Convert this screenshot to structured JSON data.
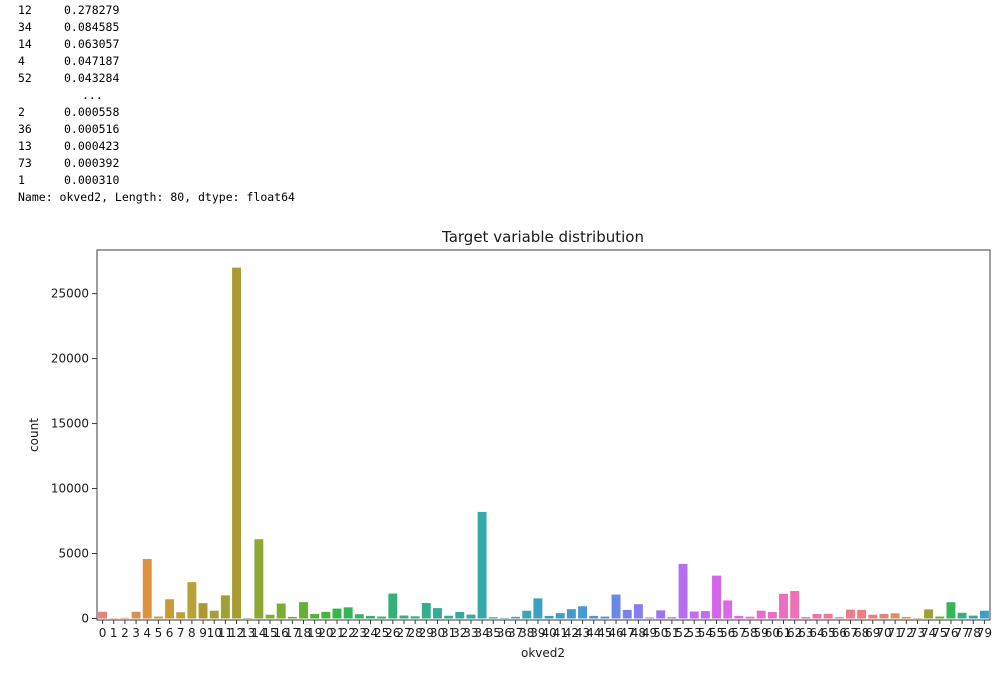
{
  "console": {
    "rows": [
      {
        "index": "12",
        "value": "0.278279"
      },
      {
        "index": "34",
        "value": "0.084585"
      },
      {
        "index": "14",
        "value": "0.063057"
      },
      {
        "index": "4",
        "value": "0.047187"
      },
      {
        "index": "52",
        "value": "0.043284"
      },
      {
        "index": "",
        "value": "..."
      },
      {
        "index": "2",
        "value": "0.000558"
      },
      {
        "index": "36",
        "value": "0.000516"
      },
      {
        "index": "13",
        "value": "0.000423"
      },
      {
        "index": "73",
        "value": "0.000392"
      },
      {
        "index": "1",
        "value": "0.000310"
      }
    ],
    "footer": "Name: okved2, Length: 80, dtype: float64"
  },
  "chart_data": {
    "type": "bar",
    "title": "Target variable distribution",
    "xlabel": "okved2",
    "ylabel": "count",
    "ylim": [
      0,
      28000
    ],
    "yticks": [
      0,
      5000,
      10000,
      15000,
      20000,
      25000
    ],
    "grid": false,
    "categories": [
      "0",
      "1",
      "2",
      "3",
      "4",
      "5",
      "6",
      "7",
      "8",
      "9",
      "10",
      "11",
      "12",
      "13",
      "14",
      "15",
      "16",
      "17",
      "18",
      "19",
      "20",
      "21",
      "22",
      "23",
      "24",
      "25",
      "26",
      "27",
      "28",
      "29",
      "30",
      "31",
      "32",
      "33",
      "34",
      "35",
      "36",
      "37",
      "38",
      "39",
      "40",
      "41",
      "42",
      "43",
      "44",
      "45",
      "46",
      "47",
      "48",
      "49",
      "50",
      "51",
      "52",
      "53",
      "54",
      "55",
      "56",
      "57",
      "58",
      "59",
      "60",
      "61",
      "62",
      "63",
      "64",
      "65",
      "66",
      "67",
      "68",
      "69",
      "70",
      "71",
      "72",
      "73",
      "74",
      "75",
      "76",
      "77",
      "78",
      "79"
    ],
    "values": [
      520,
      30,
      54,
      520,
      4580,
      150,
      1480,
      480,
      2800,
      1180,
      600,
      1780,
      27000,
      41,
      6100,
      290,
      1150,
      120,
      1260,
      350,
      510,
      760,
      860,
      330,
      200,
      150,
      1920,
      230,
      170,
      1190,
      800,
      210,
      500,
      300,
      8200,
      100,
      50,
      130,
      600,
      1550,
      200,
      410,
      720,
      940,
      200,
      150,
      1840,
      660,
      1100,
      80,
      630,
      100,
      4200,
      540,
      570,
      3300,
      1390,
      200,
      140,
      600,
      500,
      1900,
      2120,
      110,
      350,
      360,
      100,
      680,
      660,
      290,
      350,
      400,
      120,
      38,
      700,
      150,
      1250,
      440,
      220,
      600
    ],
    "colors": [
      "#e1857d",
      "#e18871",
      "#e08b62",
      "#df8e51",
      "#dd923d",
      "#d19837",
      "#c79c37",
      "#bea037",
      "#b6a236",
      "#ae9836",
      "#a79e36",
      "#a1a036",
      "#a99b33",
      "#98a533",
      "#8fa733",
      "#86aa33",
      "#7cad33",
      "#72ad33",
      "#66b033",
      "#57b233",
      "#46b33c",
      "#3ab54a",
      "#36b458",
      "#35b364",
      "#35b26c",
      "#35b174",
      "#35b07b",
      "#35af82",
      "#35ae88",
      "#35ad8e",
      "#35ac94",
      "#35ab99",
      "#36aa9f",
      "#36a9a4",
      "#36a8a9",
      "#37a7ae",
      "#38a6b2",
      "#39a5b7",
      "#3aa3bc",
      "#3ba1c1",
      "#3d9fc6",
      "#409dcb",
      "#449ad0",
      "#4a97d5",
      "#5293db",
      "#5d8ee1",
      "#6a89e6",
      "#7883ea",
      "#877dee",
      "#957af0",
      "#a074f1",
      "#ab6ff1",
      "#b66ef1",
      "#c06bf0",
      "#ca69ee",
      "#d466eb",
      "#db68e5",
      "#e06bde",
      "#e36cd7",
      "#e76cd0",
      "#e96cc9",
      "#eb6ec1",
      "#ed70b8",
      "#ee72b0",
      "#ef74a7",
      "#f0769e",
      "#f07894",
      "#f07a8b",
      "#f07c82",
      "#ef7e79",
      "#e1857d",
      "#e08b62",
      "#dd923d",
      "#c79c37",
      "#9ca037",
      "#66b033",
      "#36b458",
      "#35ae88",
      "#37a7ae",
      "#3d9fc6"
    ]
  }
}
